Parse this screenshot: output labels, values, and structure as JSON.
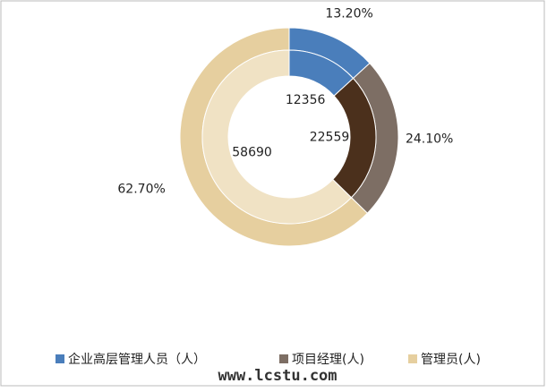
{
  "chart_data": {
    "type": "doughnut",
    "categories": [
      "企业高层管理人员（人）",
      "项目经理(人)",
      "管理员(人)"
    ],
    "rings": [
      {
        "values": [
          13.2,
          24.1,
          62.7
        ],
        "value_labels": [
          "13.20%",
          "24.10%",
          "62.70%"
        ],
        "colors": [
          "#4a7ebb",
          "#7d6e64",
          "#e6cf9f"
        ]
      },
      {
        "values": [
          12356,
          22559,
          58690
        ],
        "colors": [
          "#4a7ebb",
          "#4b301c",
          "#f0e2c4"
        ]
      }
    ],
    "legend": "bottom",
    "watermark": "www.lcstu.com"
  }
}
